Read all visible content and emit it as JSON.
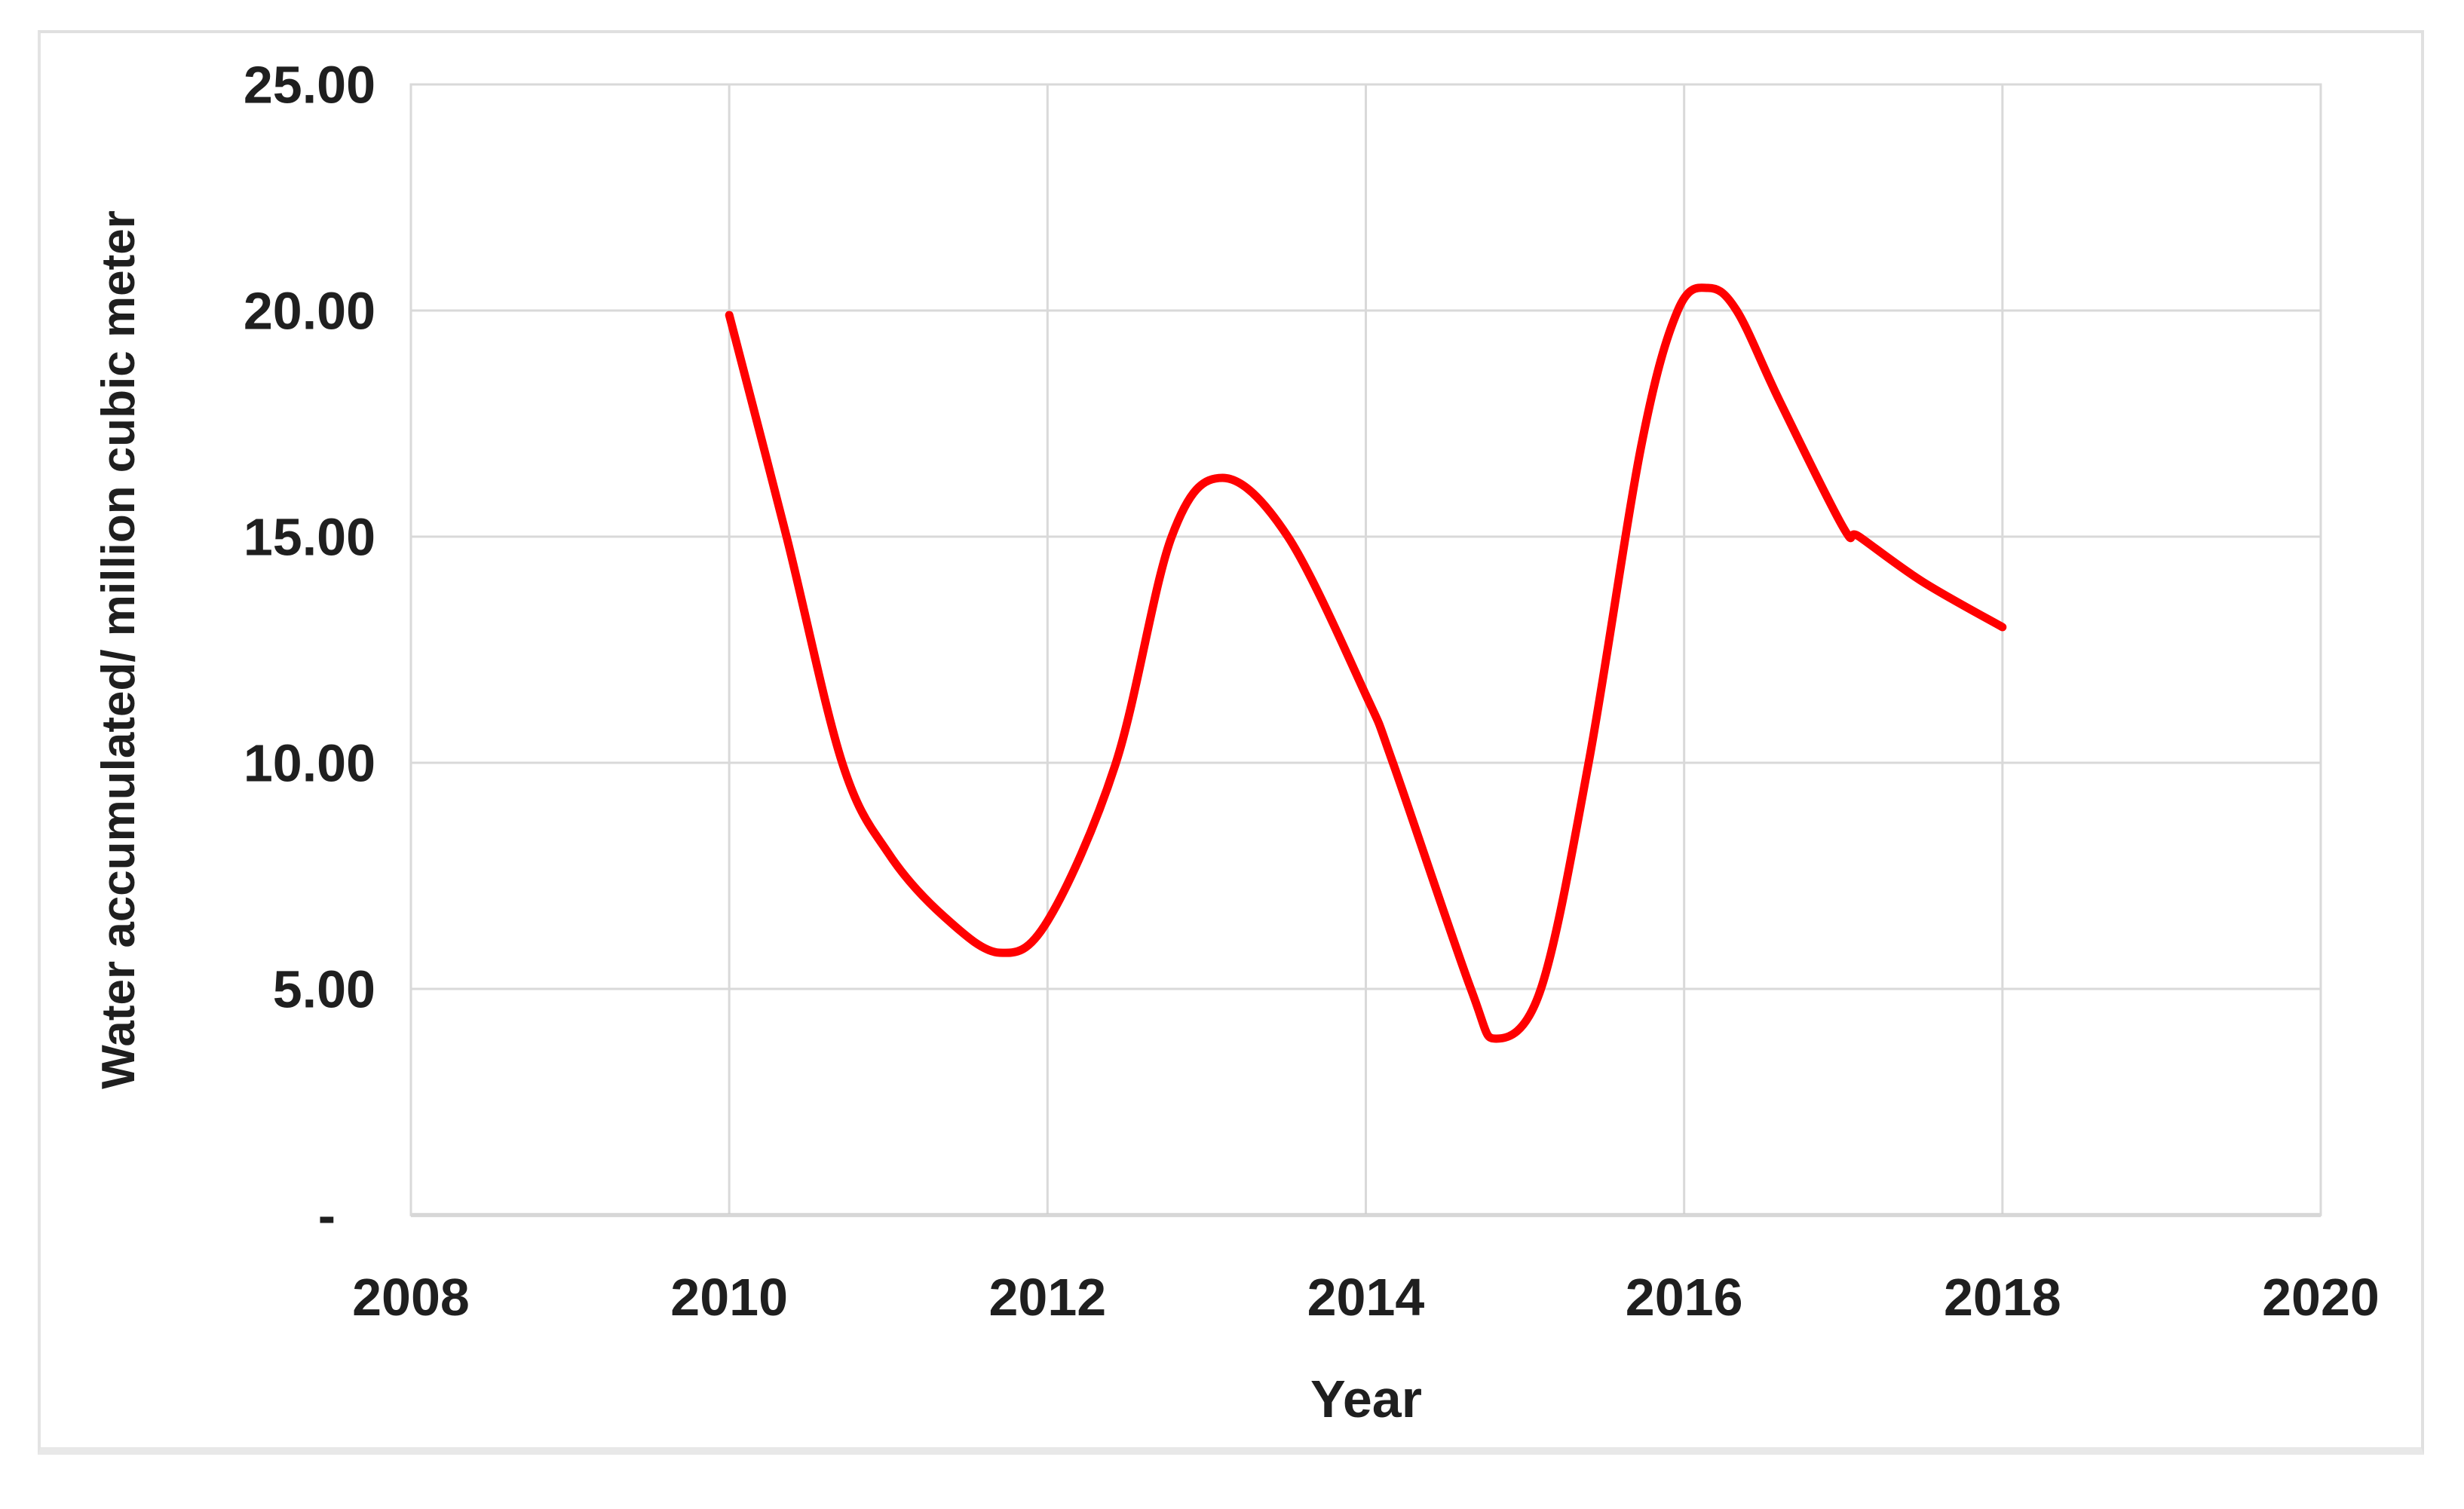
{
  "figure": {
    "background": "#FFFFFF",
    "frame_border_color": "#E0E0E0",
    "plot_border_color": "#D9D9D9",
    "gridline_color": "#D9D9D9",
    "text_color": "#1F1F1F"
  },
  "chart_data": {
    "type": "line",
    "title": "",
    "xlabel": "Year",
    "ylabel": "Water accumulated/ million cubic meter",
    "xlim": [
      2008,
      2020
    ],
    "ylim": [
      0,
      25
    ],
    "grid": "both",
    "legend": "none",
    "x_ticks": [
      {
        "value": 2008,
        "label": "2008"
      },
      {
        "value": 2010,
        "label": "2010"
      },
      {
        "value": 2012,
        "label": "2012"
      },
      {
        "value": 2014,
        "label": "2014"
      },
      {
        "value": 2016,
        "label": "2016"
      },
      {
        "value": 2018,
        "label": "2018"
      },
      {
        "value": 2020,
        "label": "2020"
      }
    ],
    "y_ticks": [
      {
        "value": 25,
        "label": "25.00"
      },
      {
        "value": 20,
        "label": "20.00"
      },
      {
        "value": 15,
        "label": "15.00"
      },
      {
        "value": 10,
        "label": "10.00"
      },
      {
        "value": 5,
        "label": "5.00"
      },
      {
        "value": 0,
        "label": "-"
      }
    ],
    "series": [
      {
        "name": "Water accumulated",
        "color": "#FF0000",
        "stroke_width": 11,
        "smooth": true,
        "points": [
          [
            2010.0,
            19.9
          ],
          [
            2010.36,
            15.0
          ],
          [
            2010.71,
            10.0
          ],
          [
            2011.0,
            8.0
          ],
          [
            2011.35,
            6.6
          ],
          [
            2011.7,
            5.8
          ],
          [
            2012.0,
            6.5
          ],
          [
            2012.43,
            10.0
          ],
          [
            2012.78,
            15.0
          ],
          [
            2013.1,
            16.3
          ],
          [
            2013.51,
            15.0
          ],
          [
            2014.0,
            11.5
          ],
          [
            2014.17,
            10.0
          ],
          [
            2014.66,
            5.0
          ],
          [
            2014.82,
            3.9
          ],
          [
            2015.1,
            5.0
          ],
          [
            2015.4,
            10.0
          ],
          [
            2015.73,
            17.0
          ],
          [
            2015.96,
            20.0
          ],
          [
            2016.15,
            20.5
          ],
          [
            2016.33,
            20.0
          ],
          [
            2016.6,
            18.0
          ],
          [
            2017.0,
            15.2
          ],
          [
            2017.1,
            15.0
          ],
          [
            2017.5,
            14.0
          ],
          [
            2018.0,
            13.0
          ]
        ]
      }
    ],
    "values_at_integer_years": {
      "2010": 19.9,
      "2011": 8.0,
      "2012": 6.5,
      "2013": 16.2,
      "2014": 11.5,
      "2015": 4.4,
      "2016": 20.0,
      "2017": 15.2,
      "2018": 13.0
    },
    "extrema": {
      "start": [
        2010.0,
        19.9
      ],
      "local_min_1": [
        2011.7,
        5.8
      ],
      "local_max_1": [
        2013.1,
        16.3
      ],
      "local_min_2": [
        2014.8,
        3.9
      ],
      "local_max_2": [
        2016.15,
        20.5
      ],
      "end": [
        2018.0,
        13.0
      ]
    }
  }
}
